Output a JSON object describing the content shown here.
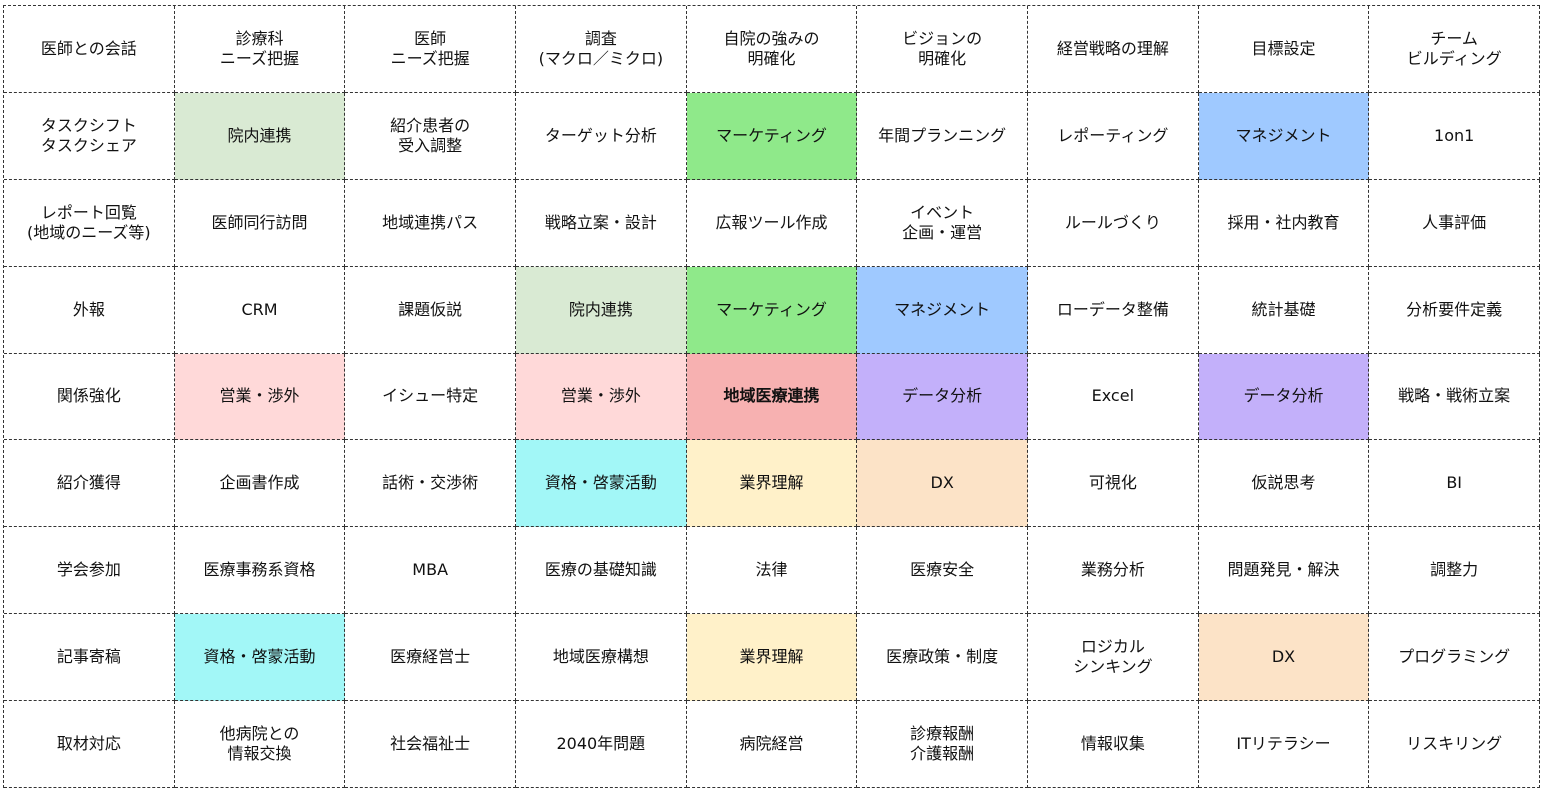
{
  "colors": {
    "light_green": "#d9ead3",
    "bright_green": "#8fe98a",
    "light_blue": "#9fc9ff",
    "pink": "#ffd9d9",
    "salmon": "#f7b1b1",
    "purple": "#c3b0fa",
    "cyan": "#a2f7f7",
    "cream": "#fff1c9",
    "peach": "#fce3c7"
  },
  "grid": {
    "rows": [
      [
        {
          "text": "医師との会話"
        },
        {
          "text": "診療科\nニーズ把握"
        },
        {
          "text": "医師\nニーズ把握"
        },
        {
          "text": "調査\n(マクロ／ミクロ)"
        },
        {
          "text": "自院の強みの\n明確化"
        },
        {
          "text": "ビジョンの\n明確化"
        },
        {
          "text": "経営戦略の理解"
        },
        {
          "text": "目標設定"
        },
        {
          "text": "チーム\nビルディング"
        }
      ],
      [
        {
          "text": "タスクシフト\nタスクシェア"
        },
        {
          "text": "院内連携",
          "bg": "light_green"
        },
        {
          "text": "紹介患者の\n受入調整"
        },
        {
          "text": "ターゲット分析"
        },
        {
          "text": "マーケティング",
          "bg": "bright_green"
        },
        {
          "text": "年間プランニング"
        },
        {
          "text": "レポーティング"
        },
        {
          "text": "マネジメント",
          "bg": "light_blue"
        },
        {
          "text": "1on1"
        }
      ],
      [
        {
          "text": "レポート回覧\n(地域のニーズ等)"
        },
        {
          "text": "医師同行訪問"
        },
        {
          "text": "地域連携パス"
        },
        {
          "text": "戦略立案・設計"
        },
        {
          "text": "広報ツール作成"
        },
        {
          "text": "イベント\n企画・運営"
        },
        {
          "text": "ルールづくり"
        },
        {
          "text": "採用・社内教育"
        },
        {
          "text": "人事評価"
        }
      ],
      [
        {
          "text": "外報"
        },
        {
          "text": "CRM"
        },
        {
          "text": "課題仮説"
        },
        {
          "text": "院内連携",
          "bg": "light_green"
        },
        {
          "text": "マーケティング",
          "bg": "bright_green"
        },
        {
          "text": "マネジメント",
          "bg": "light_blue"
        },
        {
          "text": "ローデータ整備"
        },
        {
          "text": "統計基礎"
        },
        {
          "text": "分析要件定義"
        }
      ],
      [
        {
          "text": "関係強化"
        },
        {
          "text": "営業・渉外",
          "bg": "pink"
        },
        {
          "text": "イシュー特定"
        },
        {
          "text": "営業・渉外",
          "bg": "pink"
        },
        {
          "text": "地域医療連携",
          "bg": "salmon",
          "bold": true
        },
        {
          "text": "データ分析",
          "bg": "purple"
        },
        {
          "text": "Excel"
        },
        {
          "text": "データ分析",
          "bg": "purple"
        },
        {
          "text": "戦略・戦術立案"
        }
      ],
      [
        {
          "text": "紹介獲得"
        },
        {
          "text": "企画書作成"
        },
        {
          "text": "話術・交渉術"
        },
        {
          "text": "資格・啓蒙活動",
          "bg": "cyan"
        },
        {
          "text": "業界理解",
          "bg": "cream"
        },
        {
          "text": "DX",
          "bg": "peach"
        },
        {
          "text": "可視化"
        },
        {
          "text": "仮説思考"
        },
        {
          "text": "BI"
        }
      ],
      [
        {
          "text": "学会参加"
        },
        {
          "text": "医療事務系資格"
        },
        {
          "text": "MBA"
        },
        {
          "text": "医療の基礎知識"
        },
        {
          "text": "法律"
        },
        {
          "text": "医療安全"
        },
        {
          "text": "業務分析"
        },
        {
          "text": "問題発見・解決"
        },
        {
          "text": "調整力"
        }
      ],
      [
        {
          "text": "記事寄稿"
        },
        {
          "text": "資格・啓蒙活動",
          "bg": "cyan"
        },
        {
          "text": "医療経営士"
        },
        {
          "text": "地域医療構想"
        },
        {
          "text": "業界理解",
          "bg": "cream"
        },
        {
          "text": "医療政策・制度"
        },
        {
          "text": "ロジカル\nシンキング"
        },
        {
          "text": "DX",
          "bg": "peach"
        },
        {
          "text": "プログラミング"
        }
      ],
      [
        {
          "text": "取材対応"
        },
        {
          "text": "他病院との\n情報交換"
        },
        {
          "text": "社会福祉士"
        },
        {
          "text": "2040年問題"
        },
        {
          "text": "病院経営"
        },
        {
          "text": "診療報酬\n介護報酬"
        },
        {
          "text": "情報収集"
        },
        {
          "text": "ITリテラシー"
        },
        {
          "text": "リスキリング"
        }
      ]
    ]
  }
}
